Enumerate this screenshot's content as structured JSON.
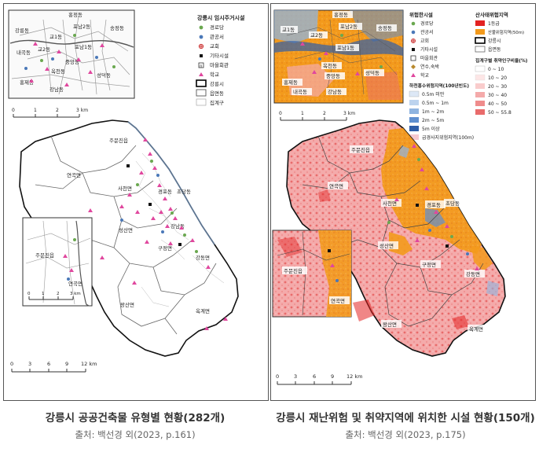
{
  "left_map": {
    "inset_labels": [
      "홍정동",
      "포남2동",
      "송정동",
      "강릉동",
      "교1동",
      "교2동",
      "포남1동",
      "내곡동",
      "중앙동",
      "옥천동",
      "홍제동",
      "성덕동",
      "강남동"
    ],
    "legend": {
      "title": "강릉시 임시주거시설",
      "items": [
        {
          "label": "경로당",
          "color": "#6aa84f",
          "shape": "circle"
        },
        {
          "label": "관공서",
          "color": "#4a78b8",
          "shape": "circle"
        },
        {
          "label": "교회",
          "color": "#cc3333",
          "shape": "cross"
        },
        {
          "label": "기타시설",
          "color": "#111111",
          "shape": "square"
        },
        {
          "label": "마을회관",
          "color": "#333333",
          "shape": "box"
        },
        {
          "label": "학교",
          "color": "#e0479e",
          "shape": "triangle"
        },
        {
          "label": "강릉시",
          "color": "#000000",
          "shape": "outline-thick"
        },
        {
          "label": "읍면동",
          "color": "#555555",
          "shape": "outline"
        },
        {
          "label": "집계구",
          "color": "#999999",
          "shape": "outline-thin"
        }
      ]
    },
    "district_labels": [
      "주문진읍",
      "연곡면",
      "사천면",
      "경포동",
      "초당동",
      "강남동",
      "성산면",
      "구정면",
      "강동면",
      "왕산면",
      "옥계면"
    ],
    "south_inset_labels": [
      "주문진읍",
      "연곡면"
    ],
    "scale_top": {
      "ticks": [
        "0",
        "1",
        "2",
        "3 km"
      ]
    },
    "scale_south": {
      "ticks": [
        "0",
        "1",
        "2",
        "3 km"
      ]
    },
    "scale_main": {
      "ticks": [
        "0",
        "3",
        "6",
        "9",
        "12 km"
      ]
    }
  },
  "right_map": {
    "inset_labels": [
      "홍정동",
      "포남2동",
      "송정동",
      "교1동",
      "교2동",
      "포남1동",
      "옥천동",
      "중앙동",
      "홍제동",
      "성덕동",
      "내곡동",
      "강남동"
    ],
    "legend_facilities": {
      "title": "위험한시설",
      "items": [
        {
          "label": "경로당",
          "color": "#6aa84f",
          "shape": "circle"
        },
        {
          "label": "관공서",
          "color": "#4a78b8",
          "shape": "circle"
        },
        {
          "label": "교회",
          "color": "#cc3333",
          "shape": "cross"
        },
        {
          "label": "기타시설",
          "color": "#111111",
          "shape": "square"
        },
        {
          "label": "마을회관",
          "color": "#333333",
          "shape": "box"
        },
        {
          "label": "연수,숙박",
          "color": "#b98a2e",
          "shape": "diamond"
        },
        {
          "label": "학교",
          "color": "#e0479e",
          "shape": "triangle"
        }
      ]
    },
    "legend_flood": {
      "title": "하천홍수위험지역(100년빈도)",
      "items": [
        {
          "label": "0.5m 미만",
          "color": "#dde8f6"
        },
        {
          "label": "0.5m ~ 1m",
          "color": "#bcd3ee"
        },
        {
          "label": "1m ~ 2m",
          "color": "#8fb4e0"
        },
        {
          "label": "2m ~ 5m",
          "color": "#5f8fcf"
        },
        {
          "label": "5m 이상",
          "color": "#2f5ea8"
        },
        {
          "label": "급경사지위험지역(100m)",
          "color": "#f6c9d0"
        }
      ]
    },
    "legend_landslide": {
      "title": "산사태위험지역",
      "items": [
        {
          "label": "1등급",
          "color": "#e32222"
        },
        {
          "label": "산불위험지역(50m)",
          "color": "#f39a1c"
        },
        {
          "label": "강릉시",
          "color": "#000000",
          "shape": "outline-thick"
        },
        {
          "label": "읍면동",
          "color": "#666666",
          "shape": "outline"
        }
      ]
    },
    "legend_vuln": {
      "title": "집계구별 취약인구비율(%)",
      "items": [
        {
          "label": "0 ~ 10",
          "color": "#ffffff"
        },
        {
          "label": "10 ~ 20",
          "color": "#fde6e6"
        },
        {
          "label": "20 ~ 30",
          "color": "#f9cccc"
        },
        {
          "label": "30 ~ 40",
          "color": "#f4aaaa"
        },
        {
          "label": "40 ~ 50",
          "color": "#ef8c8c"
        },
        {
          "label": "50 ~ 55.8",
          "color": "#e96b6b"
        }
      ]
    },
    "district_labels": [
      "주문진읍",
      "연곡면",
      "사천면",
      "경포동",
      "초당동",
      "성산면",
      "구정면",
      "강동면",
      "왕산면",
      "옥계면"
    ],
    "south_inset_labels": [
      "주문진읍",
      "연곡면"
    ],
    "scale_top": {
      "ticks": [
        "0",
        "1",
        "2",
        "3 km"
      ]
    },
    "scale_main": {
      "ticks": [
        "0",
        "3",
        "6",
        "9",
        "12 km"
      ]
    }
  },
  "captions": {
    "left_title": "강릉시 공공건축물 유형별 현황(282개)",
    "left_source": "출처: 백선경 외(2023, p.161)",
    "right_title": "강릉시 재난위험 및 취약지역에 위치한 시설 현황(150개)",
    "right_source": "출처: 백선경 외(2023, p.175)"
  }
}
